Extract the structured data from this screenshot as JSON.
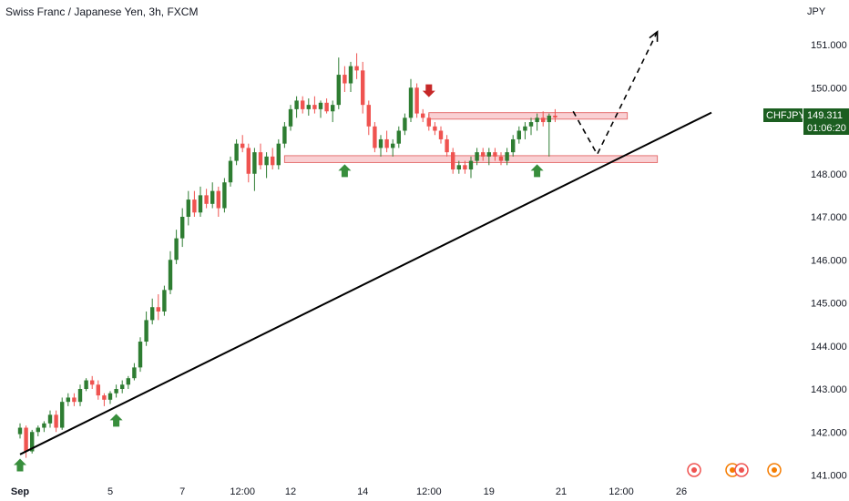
{
  "chart_data": {
    "type": "candlestick",
    "title": "Swiss Franc / Japanese Yen, 3h, FXCM",
    "currency_label": "JPY",
    "symbol": "CHFJPY",
    "last_price": "149.311",
    "countdown": "01:06:20",
    "ylim": [
      140.8,
      151.8
    ],
    "y_ticks": [
      "141.000",
      "142.000",
      "143.000",
      "144.000",
      "145.000",
      "146.000",
      "147.000",
      "148.000",
      "149.000",
      "150.000",
      "151.000"
    ],
    "x_ticks": [
      {
        "label": "Sep",
        "bar": 0,
        "bold": true
      },
      {
        "label": "5",
        "bar": 15
      },
      {
        "label": "7",
        "bar": 27
      },
      {
        "label": "12:00",
        "bar": 37
      },
      {
        "label": "12",
        "bar": 45
      },
      {
        "label": "14",
        "bar": 57
      },
      {
        "label": "12:00",
        "bar": 68
      },
      {
        "label": "19",
        "bar": 78
      },
      {
        "label": "21",
        "bar": 90
      },
      {
        "label": "12:00",
        "bar": 100
      },
      {
        "label": "26",
        "bar": 110
      }
    ],
    "ohlc": [
      [
        141.95,
        142.2,
        141.85,
        142.1
      ],
      [
        142.1,
        142.15,
        141.4,
        141.55
      ],
      [
        141.55,
        142.05,
        141.5,
        142.0
      ],
      [
        142.0,
        142.15,
        141.9,
        142.1
      ],
      [
        142.1,
        142.25,
        142.0,
        142.2
      ],
      [
        142.2,
        142.5,
        142.1,
        142.4
      ],
      [
        142.4,
        142.5,
        142.0,
        142.1
      ],
      [
        142.1,
        142.8,
        142.05,
        142.7
      ],
      [
        142.7,
        142.9,
        142.6,
        142.8
      ],
      [
        142.8,
        142.9,
        142.6,
        142.7
      ],
      [
        142.7,
        143.1,
        142.6,
        143.0
      ],
      [
        143.0,
        143.25,
        142.95,
        143.2
      ],
      [
        143.2,
        143.3,
        143.0,
        143.1
      ],
      [
        143.1,
        143.2,
        142.75,
        142.85
      ],
      [
        142.85,
        142.9,
        142.6,
        142.75
      ],
      [
        142.75,
        142.95,
        142.65,
        142.9
      ],
      [
        142.9,
        143.1,
        142.8,
        143.0
      ],
      [
        143.0,
        143.2,
        142.9,
        143.1
      ],
      [
        143.1,
        143.3,
        143.0,
        143.25
      ],
      [
        143.25,
        143.6,
        143.2,
        143.5
      ],
      [
        143.5,
        144.2,
        143.4,
        144.1
      ],
      [
        144.1,
        144.8,
        144.0,
        144.6
      ],
      [
        144.6,
        145.1,
        144.5,
        144.9
      ],
      [
        144.9,
        145.2,
        144.6,
        144.8
      ],
      [
        144.8,
        145.4,
        144.7,
        145.3
      ],
      [
        145.3,
        146.2,
        145.2,
        146.0
      ],
      [
        146.0,
        146.7,
        145.9,
        146.5
      ],
      [
        146.5,
        147.2,
        146.3,
        147.0
      ],
      [
        147.0,
        147.6,
        146.8,
        147.4
      ],
      [
        147.4,
        147.6,
        147.0,
        147.1
      ],
      [
        147.1,
        147.7,
        147.0,
        147.5
      ],
      [
        147.5,
        147.65,
        147.2,
        147.3
      ],
      [
        147.3,
        147.8,
        147.2,
        147.6
      ],
      [
        147.6,
        147.7,
        147.0,
        147.2
      ],
      [
        147.2,
        147.9,
        147.1,
        147.8
      ],
      [
        147.8,
        148.4,
        147.7,
        148.3
      ],
      [
        148.3,
        148.8,
        148.2,
        148.7
      ],
      [
        148.7,
        148.9,
        148.5,
        148.6
      ],
      [
        148.6,
        148.7,
        147.8,
        148.0
      ],
      [
        148.0,
        148.6,
        147.6,
        148.5
      ],
      [
        148.5,
        148.7,
        148.1,
        148.2
      ],
      [
        148.2,
        148.5,
        147.9,
        148.4
      ],
      [
        148.4,
        148.6,
        148.1,
        148.2
      ],
      [
        148.2,
        148.8,
        148.1,
        148.7
      ],
      [
        148.7,
        149.2,
        148.6,
        149.1
      ],
      [
        149.1,
        149.6,
        149.0,
        149.5
      ],
      [
        149.5,
        149.8,
        149.3,
        149.7
      ],
      [
        149.7,
        149.8,
        149.4,
        149.5
      ],
      [
        149.5,
        149.75,
        149.35,
        149.6
      ],
      [
        149.6,
        149.8,
        149.4,
        149.5
      ],
      [
        149.5,
        149.7,
        149.3,
        149.65
      ],
      [
        149.65,
        149.75,
        149.4,
        149.45
      ],
      [
        149.45,
        149.7,
        149.2,
        149.6
      ],
      [
        149.6,
        150.7,
        149.5,
        150.3
      ],
      [
        150.3,
        150.5,
        149.9,
        150.1
      ],
      [
        150.1,
        150.6,
        149.9,
        150.5
      ],
      [
        150.5,
        150.8,
        150.2,
        150.4
      ],
      [
        150.4,
        150.6,
        149.4,
        149.6
      ],
      [
        149.6,
        149.7,
        148.9,
        149.1
      ],
      [
        149.1,
        149.2,
        148.5,
        148.6
      ],
      [
        148.6,
        148.9,
        148.4,
        148.8
      ],
      [
        148.8,
        149.0,
        148.5,
        148.6
      ],
      [
        148.6,
        148.8,
        148.4,
        148.7
      ],
      [
        148.7,
        149.1,
        148.6,
        149.0
      ],
      [
        149.0,
        149.4,
        148.9,
        149.3
      ],
      [
        149.3,
        150.2,
        149.2,
        150.0
      ],
      [
        150.0,
        150.1,
        149.3,
        149.4
      ],
      [
        149.4,
        149.5,
        149.2,
        149.3
      ],
      [
        149.3,
        149.4,
        149.0,
        149.1
      ],
      [
        149.1,
        149.2,
        148.9,
        149.0
      ],
      [
        149.0,
        149.1,
        148.7,
        148.8
      ],
      [
        148.8,
        148.9,
        148.4,
        148.5
      ],
      [
        148.5,
        148.6,
        148.0,
        148.1
      ],
      [
        148.1,
        148.3,
        148.0,
        148.2
      ],
      [
        148.2,
        148.3,
        148.0,
        148.1
      ],
      [
        148.1,
        148.4,
        147.9,
        148.3
      ],
      [
        148.3,
        148.6,
        148.2,
        148.5
      ],
      [
        148.5,
        148.6,
        148.3,
        148.4
      ],
      [
        148.4,
        148.6,
        148.2,
        148.5
      ],
      [
        148.5,
        148.6,
        148.3,
        148.4
      ],
      [
        148.4,
        148.5,
        148.2,
        148.3
      ],
      [
        148.3,
        148.6,
        148.2,
        148.5
      ],
      [
        148.5,
        148.9,
        148.4,
        148.8
      ],
      [
        148.8,
        149.1,
        148.7,
        149.0
      ],
      [
        149.0,
        149.2,
        148.8,
        149.1
      ],
      [
        149.1,
        149.3,
        148.9,
        149.2
      ],
      [
        149.2,
        149.4,
        149.0,
        149.3
      ],
      [
        149.3,
        149.45,
        149.1,
        149.2
      ],
      [
        149.2,
        149.4,
        148.4,
        149.35
      ],
      [
        149.35,
        149.5,
        149.2,
        149.31
      ]
    ],
    "zones": [
      {
        "bar_start": 68,
        "bar_end": 101,
        "low": 149.27,
        "high": 149.42
      },
      {
        "bar_start": 44,
        "bar_end": 106,
        "low": 148.26,
        "high": 148.42
      }
    ],
    "trendline": [
      {
        "bar": 0,
        "price": 141.48
      },
      {
        "bar": 115,
        "price": 149.42
      }
    ],
    "projection": [
      {
        "bar": 92,
        "price": 149.45
      },
      {
        "bar": 96,
        "price": 148.45
      },
      {
        "bar": 106,
        "price": 151.3
      }
    ],
    "arrows_up": [
      {
        "bar": 0,
        "price": 141.38
      },
      {
        "bar": 16,
        "price": 142.42
      },
      {
        "bar": 54,
        "price": 148.22
      },
      {
        "bar": 86,
        "price": 148.22
      }
    ],
    "arrows_down": [
      {
        "bar": 68,
        "price": 149.78
      }
    ],
    "colors": {
      "up": "#2e7d32",
      "down": "#ef5350",
      "zone_fill": "#f9d0d3",
      "zone_stroke": "#e57373",
      "arrow_up": "#388e3c",
      "arrow_down": "#c62828",
      "badge": "#1b5e20"
    }
  }
}
